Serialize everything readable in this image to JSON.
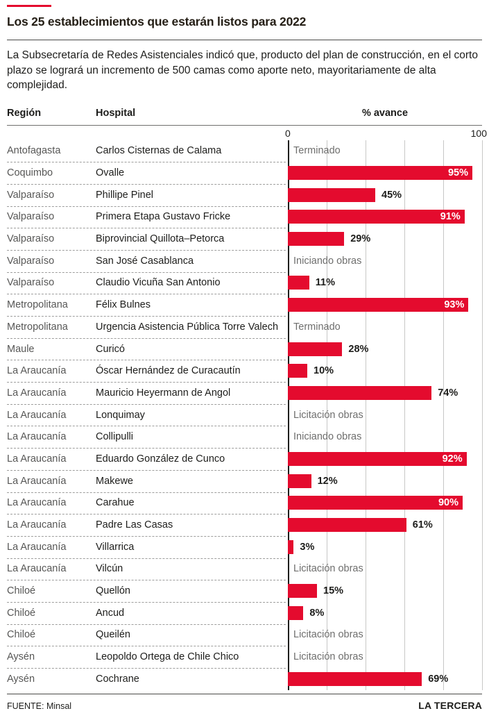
{
  "accent_red": "#e40b2e",
  "text_dark": "#1d1d1b",
  "region_text_color": "#575756",
  "status_text_color": "#6e6e6d",
  "gridline_color": "#c7c7c6",
  "header": {
    "title": "Los 25 establecimientos que estarán listos para 2022",
    "subtitle": "La Subsecretaría de Redes Asistenciales indicó que, producto del plan de construcción, en el corto plazo se logrará un incremento de 500 camas como aporte neto, mayoritariamente de alta complejidad."
  },
  "columns": {
    "region": "Región",
    "hospital": "Hospital",
    "avance": "% avance"
  },
  "axis": {
    "min_label": "0",
    "max_label": "100"
  },
  "footer": {
    "source": "FUENTE: Minsal",
    "brand": "LA TERCERA"
  },
  "chart_data": {
    "type": "bar",
    "orientation": "horizontal",
    "title": "Los 25 establecimientos que estarán listos para 2022",
    "xlabel": "% avance",
    "xlim": [
      0,
      100
    ],
    "gridlines_every": 20,
    "bar_color": "#e40b2e",
    "inside_label_threshold": 90,
    "rows": [
      {
        "region": "Antofagasta",
        "hospital": "Carlos Cisternas de Calama",
        "value": null,
        "status": "Terminado",
        "label": "Terminado"
      },
      {
        "region": "Coquimbo",
        "hospital": "Ovalle",
        "value": 95,
        "status": null,
        "label": "95%"
      },
      {
        "region": "Valparaíso",
        "hospital": "Phillipe Pinel",
        "value": 45,
        "status": null,
        "label": "45%"
      },
      {
        "region": "Valparaíso",
        "hospital": "Primera Etapa Gustavo Fricke",
        "value": 91,
        "status": null,
        "label": "91%"
      },
      {
        "region": "Valparaíso",
        "hospital": "Biprovincial Quillota–Petorca",
        "value": 29,
        "status": null,
        "label": "29%"
      },
      {
        "region": "Valparaíso",
        "hospital": "San José Casablanca",
        "value": null,
        "status": "Iniciando obras",
        "label": "Iniciando obras"
      },
      {
        "region": "Valparaíso",
        "hospital": "Claudio Vicuña San Antonio",
        "value": 11,
        "status": null,
        "label": "11%"
      },
      {
        "region": "Metropolitana",
        "hospital": "Félix Bulnes",
        "value": 93,
        "status": null,
        "label": "93%"
      },
      {
        "region": "Metropolitana",
        "hospital": "Urgencia Asistencia Pública Torre Valech",
        "value": null,
        "status": "Terminado",
        "label": "Terminado"
      },
      {
        "region": "Maule",
        "hospital": "Curicó",
        "value": 28,
        "status": null,
        "label": "28%"
      },
      {
        "region": "La Araucanía",
        "hospital": "Óscar Hernández de Curacautín",
        "value": 10,
        "status": null,
        "label": "10%"
      },
      {
        "region": "La Araucanía",
        "hospital": "Mauricio Heyermann de Angol",
        "value": 74,
        "status": null,
        "label": "74%"
      },
      {
        "region": "La Araucanía",
        "hospital": "Lonquimay",
        "value": null,
        "status": "Licitación obras",
        "label": "Licitación obras"
      },
      {
        "region": "La Araucanía",
        "hospital": "Collipulli",
        "value": null,
        "status": "Iniciando obras",
        "label": "Iniciando obras"
      },
      {
        "region": "La Araucanía",
        "hospital": "Eduardo González de Cunco",
        "value": 92,
        "status": null,
        "label": "92%"
      },
      {
        "region": "La Araucanía",
        "hospital": "Makewe",
        "value": 12,
        "status": null,
        "label": "12%"
      },
      {
        "region": "La Araucanía",
        "hospital": "Carahue",
        "value": 90,
        "status": null,
        "label": "90%"
      },
      {
        "region": "La Araucanía",
        "hospital": "Padre Las Casas",
        "value": 61,
        "status": null,
        "label": "61%"
      },
      {
        "region": "La Araucanía",
        "hospital": "Villarrica",
        "value": 3,
        "status": null,
        "label": "3%"
      },
      {
        "region": "La Araucanía",
        "hospital": "Vilcún",
        "value": null,
        "status": "Licitación obras",
        "label": "Licitación obras"
      },
      {
        "region": "Chiloé",
        "hospital": "Quellón",
        "value": 15,
        "status": null,
        "label": "15%"
      },
      {
        "region": "Chiloé",
        "hospital": "Ancud",
        "value": 8,
        "status": null,
        "label": "8%"
      },
      {
        "region": "Chiloé",
        "hospital": "Queilén",
        "value": null,
        "status": "Licitación obras",
        "label": "Licitación obras"
      },
      {
        "region": "Aysén",
        "hospital": "Leopoldo Ortega de Chile Chico",
        "value": null,
        "status": "Licitación obras",
        "label": "Licitación obras"
      },
      {
        "region": "Aysén",
        "hospital": "Cochrane",
        "value": 69,
        "status": null,
        "label": "69%"
      }
    ]
  }
}
